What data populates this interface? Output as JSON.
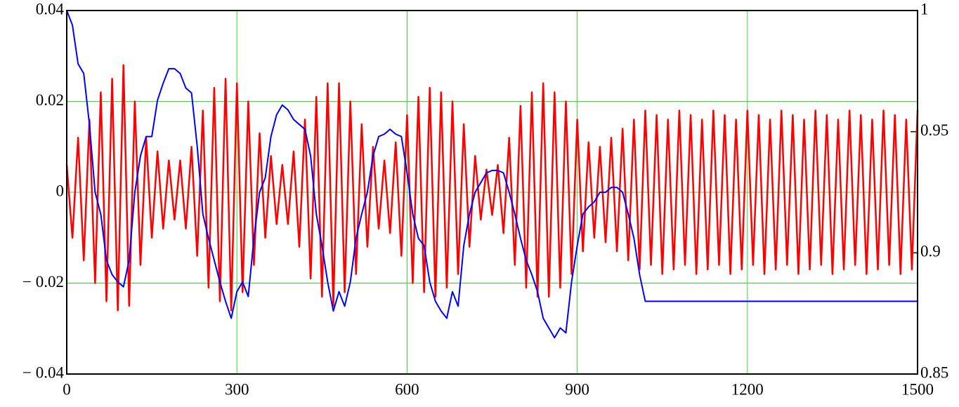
{
  "chart_data": {
    "type": "line",
    "xlim": [
      0,
      1500
    ],
    "xticks": [
      0,
      300,
      600,
      900,
      1200,
      1500
    ],
    "ylim": [
      -0.04,
      0.04
    ],
    "yticks": [
      {
        "value": -0.04,
        "label": "− 0.04"
      },
      {
        "value": -0.02,
        "label": "− 0.02"
      },
      0,
      0.02,
      0.04
    ],
    "y2lim": [
      0.85,
      1
    ],
    "y2ticks": [
      0.85,
      0.9,
      0.95,
      1
    ],
    "grid": true,
    "grid_color": "#33dd33",
    "series": [
      {
        "color": "#ff0000",
        "x": [
          0,
          10,
          20,
          30,
          40,
          50,
          60,
          70,
          80,
          90,
          100,
          110,
          120,
          130,
          140,
          150,
          160,
          170,
          180,
          190,
          200,
          210,
          220,
          230,
          240,
          250,
          260,
          270,
          280,
          290,
          300,
          310,
          320,
          330,
          340,
          350,
          360,
          370,
          380,
          390,
          400,
          410,
          420,
          430,
          440,
          450,
          460,
          470,
          480,
          490,
          500,
          510,
          520,
          530,
          540,
          550,
          560,
          570,
          580,
          590,
          600,
          610,
          620,
          630,
          640,
          650,
          660,
          670,
          680,
          690,
          700,
          710,
          720,
          730,
          740,
          750,
          760,
          770,
          780,
          790,
          800,
          810,
          820,
          830,
          840,
          850,
          860,
          870,
          880,
          890,
          900,
          910,
          920,
          930,
          940,
          950,
          960,
          970,
          980,
          990,
          1000,
          1010,
          1020,
          1030,
          1040,
          1050,
          1060,
          1070,
          1080,
          1090,
          1100,
          1110,
          1120,
          1130,
          1140,
          1150,
          1160,
          1170,
          1180,
          1190,
          1200,
          1210,
          1220,
          1230,
          1240,
          1250,
          1260,
          1270,
          1280,
          1290,
          1300,
          1310,
          1320,
          1330,
          1340,
          1350,
          1360,
          1370,
          1380,
          1390,
          1400,
          1410,
          1420,
          1430,
          1440,
          1450,
          1460,
          1470,
          1480,
          1490,
          1500
        ],
        "values": [
          0.006,
          -0.01,
          0.012,
          -0.015,
          0.016,
          -0.02,
          0.022,
          -0.024,
          0.025,
          -0.026,
          0.028,
          -0.025,
          0.02,
          -0.016,
          0.012,
          -0.01,
          0.009,
          -0.008,
          0.007,
          -0.006,
          0.007,
          -0.008,
          0.01,
          -0.014,
          0.018,
          -0.021,
          0.023,
          -0.024,
          0.025,
          -0.026,
          0.024,
          -0.022,
          0.02,
          -0.016,
          0.013,
          -0.01,
          0.008,
          -0.007,
          0.006,
          -0.007,
          0.009,
          -0.012,
          0.016,
          -0.019,
          0.021,
          -0.023,
          0.024,
          -0.025,
          0.024,
          -0.022,
          0.02,
          -0.018,
          0.015,
          -0.012,
          0.01,
          -0.008,
          0.007,
          -0.009,
          0.011,
          -0.014,
          0.017,
          -0.02,
          0.021,
          -0.022,
          0.023,
          -0.023,
          0.022,
          -0.021,
          0.02,
          -0.018,
          0.015,
          -0.012,
          0.008,
          -0.006,
          0.005,
          -0.005,
          0.006,
          -0.009,
          0.012,
          -0.016,
          0.019,
          -0.021,
          0.022,
          -0.023,
          0.024,
          -0.023,
          0.022,
          -0.021,
          0.02,
          -0.018,
          0.016,
          -0.013,
          0.011,
          -0.01,
          0.01,
          -0.011,
          0.012,
          -0.013,
          0.014,
          -0.015,
          0.016,
          -0.017,
          0.018,
          -0.016,
          0.017,
          -0.018,
          0.016,
          -0.017,
          0.018,
          -0.016,
          0.017,
          -0.018,
          0.016,
          -0.017,
          0.018,
          -0.016,
          0.017,
          -0.018,
          0.016,
          -0.017,
          0.018,
          -0.016,
          0.017,
          -0.018,
          0.016,
          -0.017,
          0.018,
          -0.016,
          0.017,
          -0.018,
          0.016,
          -0.017,
          0.018,
          -0.016,
          0.017,
          -0.018,
          0.016,
          -0.017,
          0.018,
          -0.016,
          0.017,
          -0.018,
          0.016,
          -0.017,
          0.018,
          -0.016,
          0.017,
          -0.018,
          0.016,
          -0.017,
          0.018
        ]
      },
      {
        "color": "#0000ff",
        "axis": "y2",
        "x": [
          0,
          10,
          20,
          30,
          40,
          50,
          60,
          70,
          80,
          90,
          100,
          110,
          120,
          130,
          140,
          150,
          160,
          170,
          180,
          190,
          200,
          210,
          220,
          230,
          240,
          250,
          260,
          270,
          280,
          290,
          300,
          310,
          320,
          330,
          340,
          350,
          360,
          370,
          380,
          390,
          400,
          410,
          420,
          430,
          440,
          450,
          460,
          470,
          480,
          490,
          500,
          510,
          520,
          530,
          540,
          550,
          560,
          570,
          580,
          590,
          600,
          610,
          620,
          630,
          640,
          650,
          660,
          670,
          680,
          690,
          700,
          710,
          720,
          730,
          740,
          750,
          760,
          770,
          780,
          790,
          800,
          810,
          820,
          830,
          840,
          850,
          860,
          870,
          880,
          890,
          900,
          910,
          920,
          930,
          940,
          950,
          960,
          970,
          980,
          990,
          1000,
          1010,
          1020,
          1500
        ],
        "values": [
          1,
          0.994,
          0.978,
          0.974,
          0.953,
          0.925,
          0.916,
          0.897,
          0.891,
          0.888,
          0.886,
          0.897,
          0.925,
          0.94,
          0.948,
          0.948,
          0.963,
          0.97,
          0.976,
          0.976,
          0.974,
          0.968,
          0.966,
          0.944,
          0.916,
          0.906,
          0.897,
          0.888,
          0.88,
          0.873,
          0.884,
          0.888,
          0.882,
          0.906,
          0.925,
          0.931,
          0.948,
          0.957,
          0.961,
          0.959,
          0.955,
          0.953,
          0.951,
          0.94,
          0.916,
          0.903,
          0.888,
          0.876,
          0.884,
          0.878,
          0.888,
          0.906,
          0.916,
          0.925,
          0.94,
          0.948,
          0.949,
          0.951,
          0.949,
          0.948,
          0.933,
          0.916,
          0.906,
          0.903,
          0.888,
          0.88,
          0.876,
          0.873,
          0.884,
          0.878,
          0.903,
          0.916,
          0.925,
          0.929,
          0.933,
          0.934,
          0.934,
          0.933,
          0.925,
          0.916,
          0.906,
          0.897,
          0.891,
          0.884,
          0.873,
          0.869,
          0.865,
          0.869,
          0.867,
          0.888,
          0.903,
          0.916,
          0.919,
          0.921,
          0.925,
          0.925,
          0.927,
          0.927,
          0.925,
          0.916,
          0.906,
          0.891,
          0.88,
          0.88
        ]
      }
    ]
  }
}
